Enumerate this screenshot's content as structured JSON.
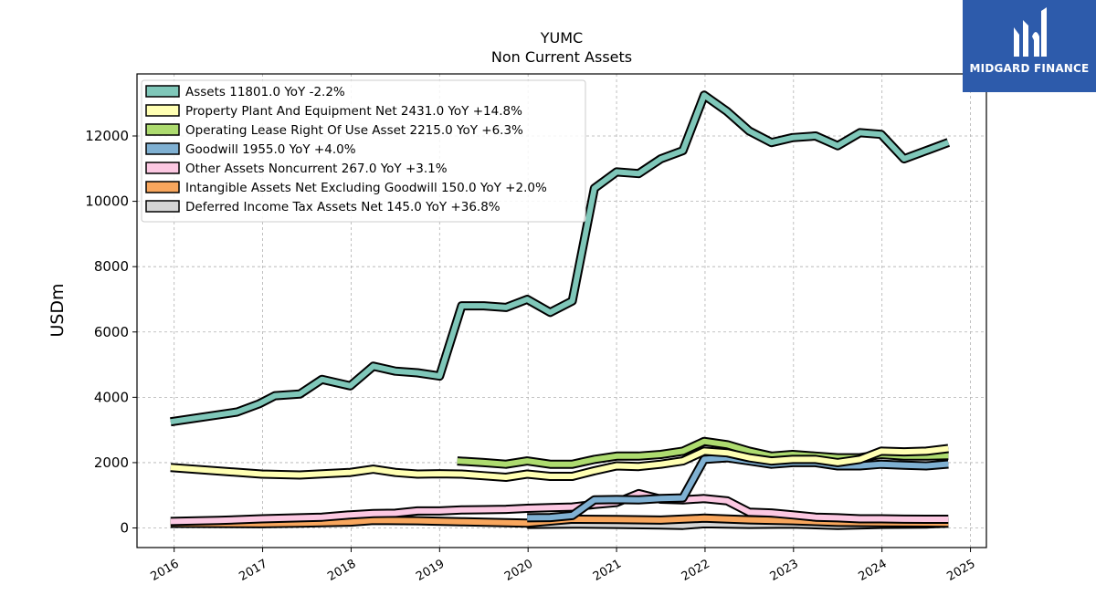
{
  "chart_data": {
    "type": "line",
    "title": "YUMC",
    "subtitle": "Non Current  Assets",
    "xlabel": "",
    "ylabel": "USDm",
    "xlim": [
      2015.58,
      2025.18
    ],
    "ylim": [
      -600,
      13900
    ],
    "x_ticks": [
      2016,
      2017,
      2018,
      2019,
      2020,
      2021,
      2022,
      2023,
      2024,
      2025
    ],
    "y_ticks": [
      0,
      2000,
      4000,
      6000,
      8000,
      10000,
      12000
    ],
    "grid": true,
    "legend_position": "top-left",
    "series": [
      {
        "name": "Assets",
        "legend": "Assets  11801.0 YoY -2.2%",
        "color": "#7fc7b9",
        "x": [
          2015.96,
          2016.71,
          2016.96,
          2017.14,
          2017.42,
          2017.67,
          2017.99,
          2018.25,
          2018.5,
          2018.75,
          2019.0,
          2019.25,
          2019.5,
          2019.75,
          2019.99,
          2020.25,
          2020.5,
          2020.75,
          2021.0,
          2021.25,
          2021.5,
          2021.75,
          2021.99,
          2022.25,
          2022.5,
          2022.75,
          2022.99,
          2023.25,
          2023.5,
          2023.75,
          2023.99,
          2024.25,
          2024.5,
          2024.75
        ],
        "y": [
          3250,
          3550,
          3800,
          4050,
          4100,
          4550,
          4350,
          4950,
          4800,
          4750,
          4650,
          6800,
          6800,
          6750,
          7000,
          6600,
          6950,
          10400,
          10900,
          10850,
          11300,
          11550,
          13250,
          12750,
          12150,
          11800,
          11950,
          12000,
          11700,
          12100,
          12050,
          11300,
          11550,
          11801
        ]
      },
      {
        "name": "Property Plant And Equipment Net",
        "legend": "Property Plant And Equipment Net  2431.0 YoY +14.8%",
        "color": "#ffffb3",
        "x": [
          2015.96,
          2016.99,
          2017.42,
          2017.99,
          2018.25,
          2018.5,
          2018.75,
          2019.0,
          2019.25,
          2019.5,
          2019.75,
          2019.99,
          2020.25,
          2020.5,
          2020.75,
          2021.0,
          2021.25,
          2021.5,
          2021.75,
          2021.99,
          2022.25,
          2022.5,
          2022.75,
          2022.99,
          2023.25,
          2023.5,
          2023.75,
          2023.99,
          2024.25,
          2024.5,
          2024.75
        ],
        "y": [
          1850,
          1650,
          1620,
          1700,
          1800,
          1700,
          1650,
          1660,
          1650,
          1600,
          1550,
          1650,
          1580,
          1580,
          1750,
          1900,
          1880,
          1950,
          2050,
          2350,
          2300,
          2150,
          2050,
          2100,
          2100,
          2000,
          2100,
          2350,
          2330,
          2350,
          2431
        ]
      },
      {
        "name": "Operating Lease Right Of Use Asset",
        "legend": "Operating Lease Right Of Use Asset  2215.0 YoY +6.3%",
        "color": "#addb6f",
        "x": [
          2019.2,
          2019.5,
          2019.75,
          2019.99,
          2020.25,
          2020.5,
          2020.75,
          2021.0,
          2021.25,
          2021.5,
          2021.75,
          2021.99,
          2022.25,
          2022.5,
          2022.75,
          2022.99,
          2023.25,
          2023.5,
          2023.75,
          2023.99,
          2024.25,
          2024.5,
          2024.75
        ],
        "y": [
          2050,
          2000,
          1950,
          2050,
          1950,
          1950,
          2100,
          2200,
          2200,
          2250,
          2350,
          2650,
          2550,
          2350,
          2200,
          2250,
          2200,
          2150,
          2150,
          2250,
          2200,
          2200,
          2215
        ]
      },
      {
        "name": "Goodwill",
        "legend": "Goodwill  1955.0 YoY +4.0%",
        "color": "#7fb0d2",
        "x": [
          2019.99,
          2020.25,
          2020.5,
          2020.75,
          2021.0,
          2021.25,
          2021.5,
          2021.75,
          2021.99,
          2022.25,
          2022.5,
          2022.75,
          2022.99,
          2023.25,
          2023.5,
          2023.75,
          2023.99,
          2024.25,
          2024.5,
          2024.75
        ],
        "y": [
          310,
          320,
          380,
          860,
          870,
          860,
          900,
          920,
          2100,
          2150,
          2050,
          1950,
          2000,
          2000,
          1900,
          1900,
          1950,
          1920,
          1900,
          1955
        ]
      },
      {
        "name": "Other Assets Noncurrent",
        "legend": "Other Assets Noncurrent  267.0 YoY +3.1%",
        "color": "#fcc8e2",
        "x": [
          2015.96,
          2016.5,
          2016.99,
          2017.42,
          2017.67,
          2017.99,
          2018.25,
          2018.5,
          2018.75,
          2019.0,
          2019.25,
          2019.5,
          2019.75,
          2019.99,
          2020.25,
          2020.5,
          2020.75,
          2021.0,
          2021.25,
          2021.5,
          2021.75,
          2021.99,
          2022.25,
          2022.5,
          2022.75,
          2022.99,
          2023.25,
          2023.5,
          2023.75,
          2023.99,
          2024.25,
          2024.5,
          2024.75
        ],
        "y": [
          200,
          230,
          280,
          310,
          330,
          400,
          440,
          450,
          520,
          520,
          550,
          560,
          570,
          600,
          620,
          640,
          720,
          780,
          1050,
          880,
          860,
          900,
          830,
          480,
          460,
          400,
          330,
          310,
          280,
          280,
          270,
          265,
          267
        ]
      },
      {
        "name": "Intangible Assets Net Excluding Goodwill",
        "legend": "Intangible Assets Net Excluding Goodwill  150.0 YoY +2.0%",
        "color": "#f8a65d",
        "x": [
          2015.96,
          2016.99,
          2017.42,
          2017.99,
          2018.25,
          2018.75,
          2019.25,
          2019.75,
          2019.99,
          2020.5,
          2021.0,
          2021.5,
          2021.99,
          2022.5,
          2022.99,
          2023.5,
          2023.99,
          2024.5,
          2024.75
        ],
        "y": [
          140,
          130,
          150,
          180,
          230,
          220,
          190,
          160,
          150,
          270,
          260,
          240,
          300,
          250,
          220,
          170,
          160,
          155,
          150
        ]
      },
      {
        "name": "Deferred Income Tax Assets Net",
        "legend": "Deferred Income Tax Assets Net  145.0 YoY +36.8%",
        "color": "#d5d5d5",
        "x": [
          2019.99,
          2020.5,
          2021.0,
          2021.5,
          2021.75,
          2021.99,
          2022.5,
          2022.99,
          2023.5,
          2023.99,
          2024.5,
          2024.75
        ],
        "y": [
          110,
          120,
          110,
          90,
          80,
          130,
          110,
          120,
          80,
          110,
          120,
          145
        ]
      }
    ]
  },
  "logo": {
    "text": "MIDGARD FINANCE"
  }
}
